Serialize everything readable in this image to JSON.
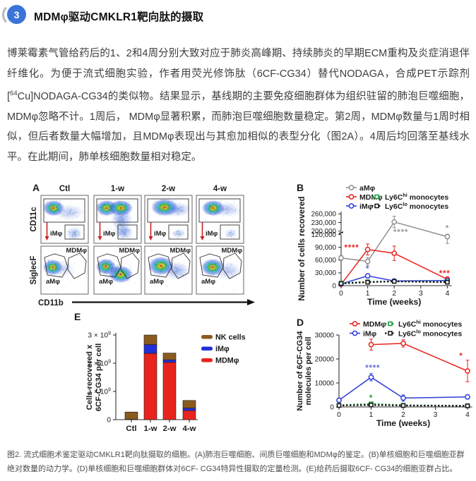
{
  "header": {
    "number": "3",
    "title": "MDMφ驱动CMKLR1靶向肽的摄取",
    "accent_color": "#3b74d9"
  },
  "paragraph": {
    "segments": [
      {
        "text": "博莱霉素气管给药后的1、2和4周分别大致对应于肺炎高峰期、持续肺炎的早期ECM重构及炎症消退伴纤维化。为便于流式细胞实验，作者用荧光修饰肽（6CF-CG34）替代NODAGA，合成PET示踪剂["
      },
      {
        "sup": "64"
      },
      {
        "text": "Cu]NODAGA-CG34的类似物。结果显示，基线期的主要免疫细胞群体为组织驻留的肺泡巨噬细胞，MDMφ忽略不计。1周后， MDMφ显著积累，而肺泡巨噬细胞数量稳定。第2周，MDMφ数量与1周时相似，但后者数量大幅增加，且MDMφ表现出与其愈加相似的表型分化（图2A）。4周后均回落至基线水平。在此期间，肺单核细胞数量相对稳定。"
      }
    ]
  },
  "caption": "图2. 流式细胞术鉴定驱动CMKLR1靶向肽摄取的细胞。(A)肺泡巨噬细胞、间质巨噬细胞和MDMφ的鉴定。(B)单核细胞和巨噬细胞亚群绝对数量的动力学。(D)单核细胞和巨噬细胞群体对6CF- CG34特异性摄取的定量检测。(E)给药后摄取6CF- CG34的细胞亚群占比。",
  "colors": {
    "red": "#e8231d",
    "blue": "#2f3cd9",
    "green": "#169a3e",
    "gray": "#8f8f8f",
    "black": "#141414",
    "brown": "#8a5a1e"
  },
  "chart_data": [
    {
      "panel": "A",
      "type": "flow-cytometry",
      "columns": [
        "Ctl",
        "1-w",
        "2-w",
        "4-w"
      ],
      "row_axis_labels": [
        "CD11c",
        "SiglecF"
      ],
      "x_axis_label": "CD11b",
      "top_gate_label": "iMφ",
      "bottom_gate_labels": [
        "aMφ",
        "MDMφ"
      ]
    },
    {
      "panel": "B",
      "type": "line",
      "ylabel": "Number of cells recovered",
      "xlabel": "Time (weeks)",
      "x_ticks": [
        "0",
        "1",
        "2",
        "3",
        "4"
      ],
      "axis_break": true,
      "y_ticks_lower": [
        {
          "v": 0,
          "label": "0"
        },
        {
          "v": 30000,
          "label": "30,000"
        },
        {
          "v": 60000,
          "label": "60,000"
        },
        {
          "v": 90000,
          "label": "90,000"
        },
        {
          "v": 120000,
          "label": "120,000"
        }
      ],
      "y_ticks_upper": [
        {
          "v": 200000,
          "label": "200,000"
        },
        {
          "v": 230000,
          "label": "230,000"
        },
        {
          "v": 260000,
          "label": "260,000"
        }
      ],
      "series": [
        {
          "name": "aMφ",
          "color": "#8f8f8f",
          "dash": false,
          "marker": "circle",
          "x": [
            0,
            1,
            2,
            4
          ],
          "y": [
            65000,
            57000,
            232000,
            115000
          ],
          "err": [
            6000,
            9000,
            20000,
            16000
          ]
        },
        {
          "name": "MDMφ",
          "color": "#e8231d",
          "dash": false,
          "marker": "circle",
          "x": [
            0,
            1,
            2,
            4
          ],
          "y": [
            3000,
            85000,
            76000,
            15000
          ],
          "err": [
            2500,
            13000,
            17000,
            6000
          ]
        },
        {
          "name": "iMφ",
          "color": "#2f3cd9",
          "dash": false,
          "marker": "circle",
          "x": [
            0,
            1,
            2,
            4
          ],
          "y": [
            4000,
            23000,
            11000,
            12000
          ],
          "err": [
            2000,
            5000,
            2500,
            3000
          ]
        },
        {
          "name": {
            "pre": "Ly6C",
            "sup": "hi",
            "post": " monocytes"
          },
          "color": "#169a3e",
          "dash": true,
          "marker": "square",
          "x": [
            0,
            1,
            2,
            4
          ],
          "y": [
            6000,
            9000,
            10000,
            9000
          ],
          "err": [
            1500,
            2500,
            2500,
            2000
          ]
        },
        {
          "name": {
            "pre": "Ly6C",
            "sup": "lo",
            "post": " monocytes"
          },
          "color": "#141414",
          "dash": true,
          "marker": "square",
          "x": [
            0,
            1,
            2,
            4
          ],
          "y": [
            5000,
            8000,
            10000,
            8000
          ],
          "err": [
            1500,
            2000,
            2000,
            1500
          ]
        }
      ],
      "annotations": [
        {
          "text": "****",
          "color": "#e8231d",
          "x": 0.4,
          "y": 88000
        },
        {
          "text": "****",
          "color": "#9a9a9a",
          "x": 2.25,
          "y": 160000
        },
        {
          "text": "*",
          "color": "#9a9a9a",
          "x": 4,
          "y": 208000
        },
        {
          "text": "*",
          "color": "#5f6fd8",
          "x": 1,
          "y": 38000
        },
        {
          "text": "***",
          "color": "#e8231d",
          "x": 3.9,
          "y": 27000
        }
      ]
    },
    {
      "panel": "D",
      "type": "line",
      "ylabel_lines": [
        "Number of 6CF-CG34",
        "molecules per cell"
      ],
      "xlabel": "Time (weeks)",
      "x_ticks": [
        "0",
        "1",
        "2",
        "3",
        "4"
      ],
      "axis_break": false,
      "y_ticks": [
        {
          "v": 0,
          "label": "0"
        },
        {
          "v": 10000,
          "label": "10000"
        },
        {
          "v": 20000,
          "label": "20000"
        },
        {
          "v": 30000,
          "label": "30000"
        }
      ],
      "series": [
        {
          "name": "MDMφ",
          "color": "#e8231d",
          "dash": false,
          "marker": "circle",
          "x": [
            1,
            2,
            4
          ],
          "y": [
            26000,
            26500,
            15000
          ],
          "err": [
            2300,
            1500,
            4500
          ]
        },
        {
          "name": "iMφ",
          "color": "#2f3cd9",
          "dash": false,
          "marker": "circle",
          "x": [
            0,
            1,
            2,
            4
          ],
          "y": [
            2800,
            12400,
            3700,
            4200
          ],
          "err": [
            900,
            1500,
            1300,
            900
          ]
        },
        {
          "name": {
            "pre": "Ly6C",
            "sup": "hi",
            "post": " monocytes"
          },
          "color": "#169a3e",
          "dash": true,
          "marker": "square",
          "x": [
            0,
            1,
            2,
            4
          ],
          "y": [
            700,
            1300,
            700,
            500
          ],
          "err": [
            300,
            400,
            300,
            200
          ]
        },
        {
          "name": {
            "pre": "Ly6C",
            "sup": "lo",
            "post": " monocytes"
          },
          "color": "#141414",
          "dash": true,
          "marker": "square",
          "x": [
            0,
            1,
            2,
            4
          ],
          "y": [
            600,
            800,
            600,
            450
          ],
          "err": [
            200,
            300,
            200,
            200
          ]
        }
      ],
      "annotations": [
        {
          "text": "****",
          "color": "#5f6fd8",
          "x": 1.05,
          "y": 16000
        },
        {
          "text": "*",
          "color": "#169a3e",
          "x": 1,
          "y": 3600
        },
        {
          "text": "*",
          "color": "#e8231d",
          "x": 3.8,
          "y": 21000
        }
      ]
    },
    {
      "panel": "E",
      "type": "stacked-bar",
      "ylabel_lines": [
        "Cells recovered x",
        "6CF-CG34 per cell"
      ],
      "categories": [
        "Ctl",
        "1-w",
        "2-w",
        "4-w"
      ],
      "y_ticks": [
        {
          "v": 0,
          "label": "0"
        },
        {
          "v": 1000000000,
          "label": "1 × 10",
          "sup": "9"
        },
        {
          "v": 2000000000,
          "label": "2 × 10",
          "sup": "9"
        },
        {
          "v": 3000000000,
          "label": "3 × 10",
          "sup": "9"
        }
      ],
      "series": [
        {
          "name": "MDMφ",
          "color": "#e8231d",
          "values": [
            10000000,
            2350000000,
            2030000000,
            320000000
          ]
        },
        {
          "name": "iMφ",
          "color": "#2230d6",
          "values": [
            0,
            310000000,
            90000000,
            90000000
          ]
        },
        {
          "name": "NK cells",
          "color": "#8a5a1e",
          "values": [
            260000000,
            340000000,
            240000000,
            270000000
          ]
        }
      ],
      "legend_order": [
        "NK cells",
        "iMφ",
        "MDMφ"
      ]
    }
  ]
}
